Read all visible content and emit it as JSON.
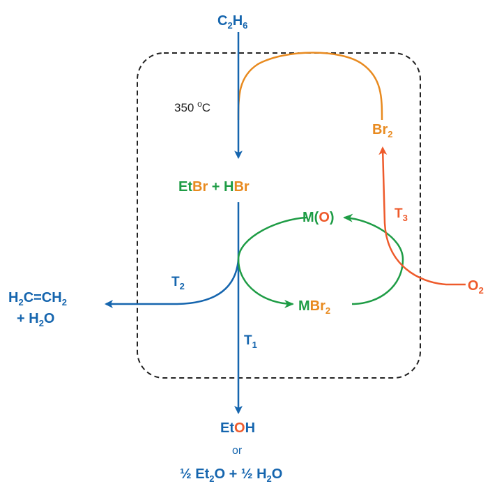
{
  "colors": {
    "blue": "#1565AE",
    "green": "#1E9C45",
    "orange": "#E88A1F",
    "redorange": "#EE5A2B",
    "dashed": "#222222",
    "black": "#222222"
  },
  "labels": {
    "ethane_C": "C",
    "ethane_sub1": "2",
    "ethane_H": "H",
    "ethane_sub2": "6",
    "temp_value": "350 ",
    "temp_deg": "o",
    "temp_unit": "C",
    "br2_main": "Br",
    "br2_sub": "2",
    "etbr_et": "Et",
    "etbr_br": "Br",
    "plus": " + ",
    "hbr_h": "H",
    "hbr_br": "Br",
    "mo_m": "M(",
    "mo_o": "O",
    "mo_close": ")",
    "mbr2_m": "M",
    "mbr2_br": "Br",
    "mbr2_sub": "2",
    "t1_T": "T",
    "t1_sub": "1",
    "t2_T": "T",
    "t2_sub": "2",
    "t3_T": "T",
    "t3_sub": "3",
    "o2_main": "O",
    "o2_sub": "2",
    "ethylene_line1_a": "H",
    "ethylene_line1_b": "2",
    "ethylene_line1_c": "C=CH",
    "ethylene_line1_d": "2",
    "ethylene_line2_a": "+ H",
    "ethylene_line2_b": "2",
    "ethylene_line2_c": "O",
    "etoh_et": "Et",
    "etoh_o": "O",
    "etoh_h": "H",
    "or_text": "or",
    "ether_line_a": "½ Et",
    "ether_line_b": "2",
    "ether_line_c": "O + ½ H",
    "ether_line_d": "2",
    "ether_line_e": "O"
  }
}
